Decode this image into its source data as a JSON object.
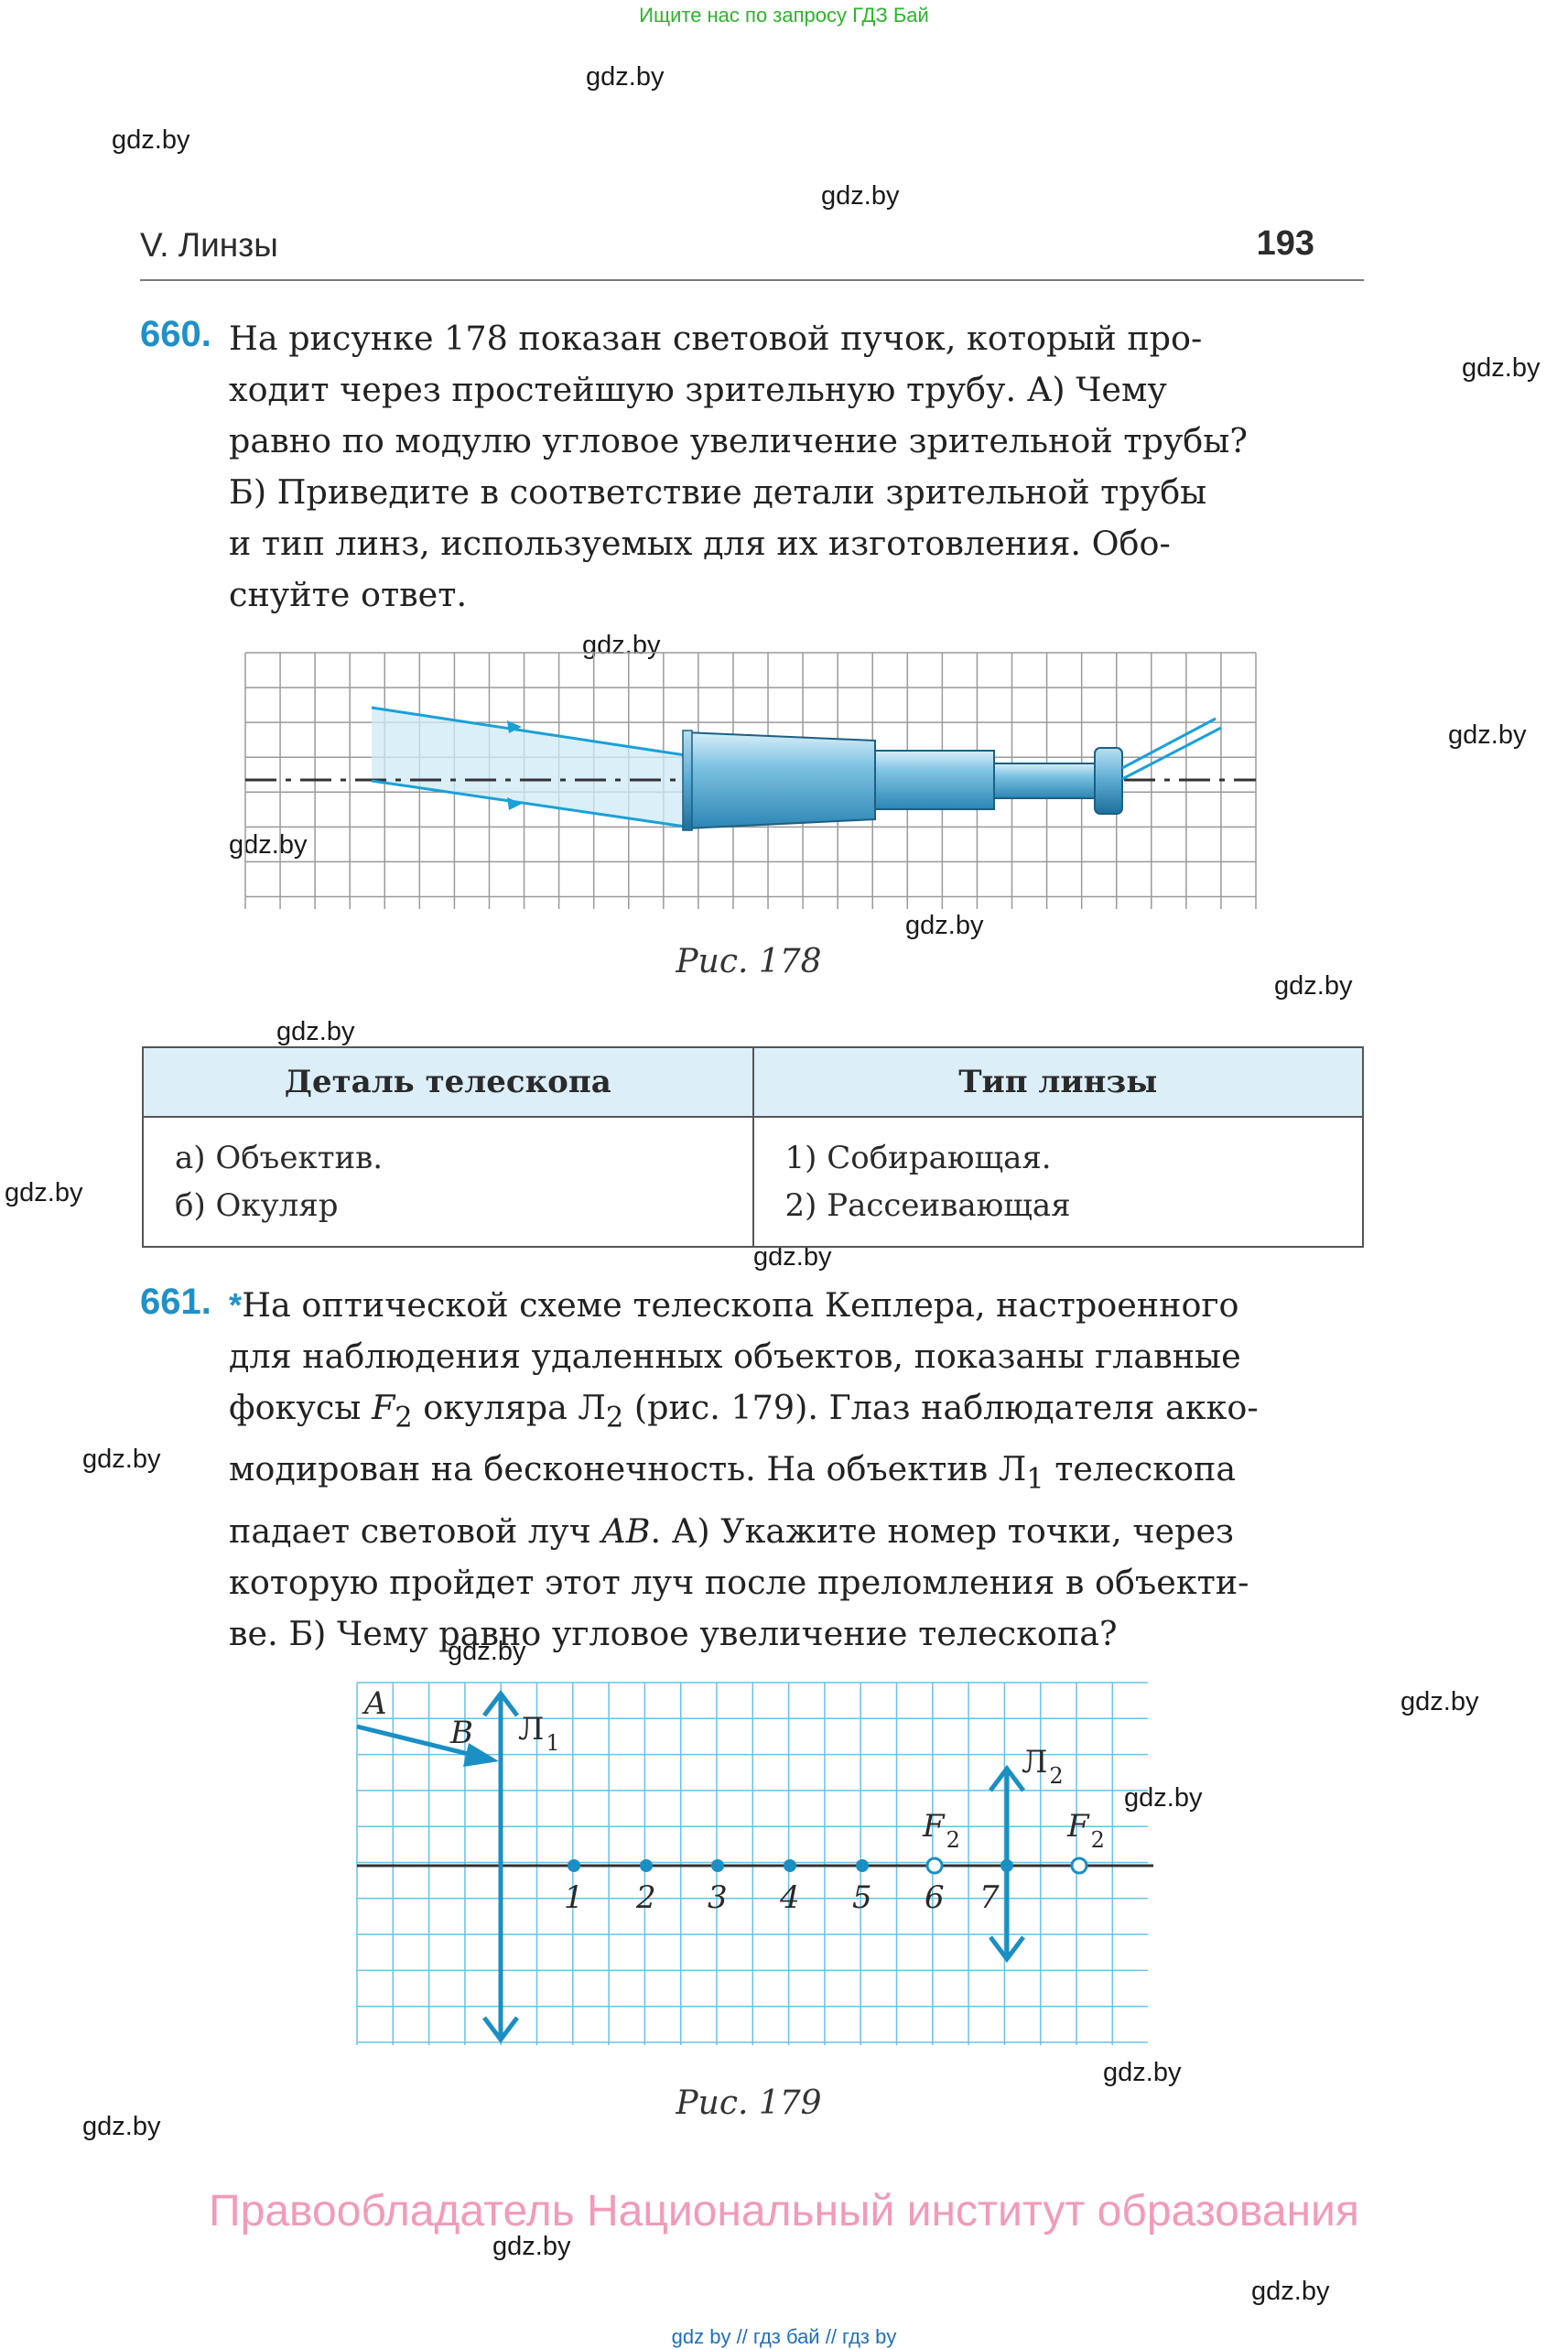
{
  "top_link": "Ищите нас по запросу ГДЗ Бай",
  "watermark": "gdz.by",
  "header": {
    "section": "V. Линзы",
    "page_number": "193"
  },
  "task660": {
    "number": "660.",
    "lines": [
      "На рисунке 178 показан световой пучок, который про-",
      "ходит через простейшую зрительную трубу. А) Чему",
      "равно по модулю угловое увеличение зрительной трубы?",
      "Б) Приведите в соответствие детали зрительной трубы",
      "и тип линз, используемых для их изготовления. Обо-",
      "снуйте ответ."
    ],
    "caption": "Рис. 178"
  },
  "table": {
    "col1_header": "Деталь телескопа",
    "col2_header": "Тип линзы",
    "col1_items": [
      "а) Объектив.",
      "б) Окуляр"
    ],
    "col2_items": [
      "1) Собирающая.",
      "2) Рассеивающая"
    ]
  },
  "task661": {
    "number": "661.",
    "star": "*",
    "line1": "На оптической схеме телескопа Кеплера, настроенного",
    "line2": "для наблюдения удаленных объектов, показаны главные",
    "line3_a": "фокусы ",
    "line3_f": "F",
    "line3_sub": "2",
    "line3_b": " окуляра Л",
    "line3_sub2": "2",
    "line3_c": " (рис. 179). Глаз наблюдателя акко-",
    "line4_a": "модирован на бесконечность. На объектив Л",
    "line4_sub": "1",
    "line4_b": " телескопа",
    "line5_a": "падает световой луч ",
    "line5_ab": "AB",
    "line5_b": ". А) Укажите номер точки, через",
    "line6": "которую пройдет этот луч после преломления в объекти-",
    "line7": "ве. Б) Чему равно угловое увеличение телескопа?",
    "caption": "Рис. 179"
  },
  "fig179": {
    "label_A": "A",
    "label_B": "B",
    "lens1": "Л",
    "lens1_sub": "1",
    "lens2": "Л",
    "lens2_sub": "2",
    "focus": "F",
    "focus_sub": "2",
    "points": [
      "1",
      "2",
      "3",
      "4",
      "5",
      "6",
      "7"
    ]
  },
  "footer": {
    "copyright": "Правообладатель Национальный институт образования",
    "bottom_links": "gdz by  //  гдз бай  //  гдз by"
  },
  "colors": {
    "accent": "#1f90c8",
    "grid": "#6cc0e8",
    "copyright": "#f29aba",
    "top_link": "#2bb52b"
  }
}
